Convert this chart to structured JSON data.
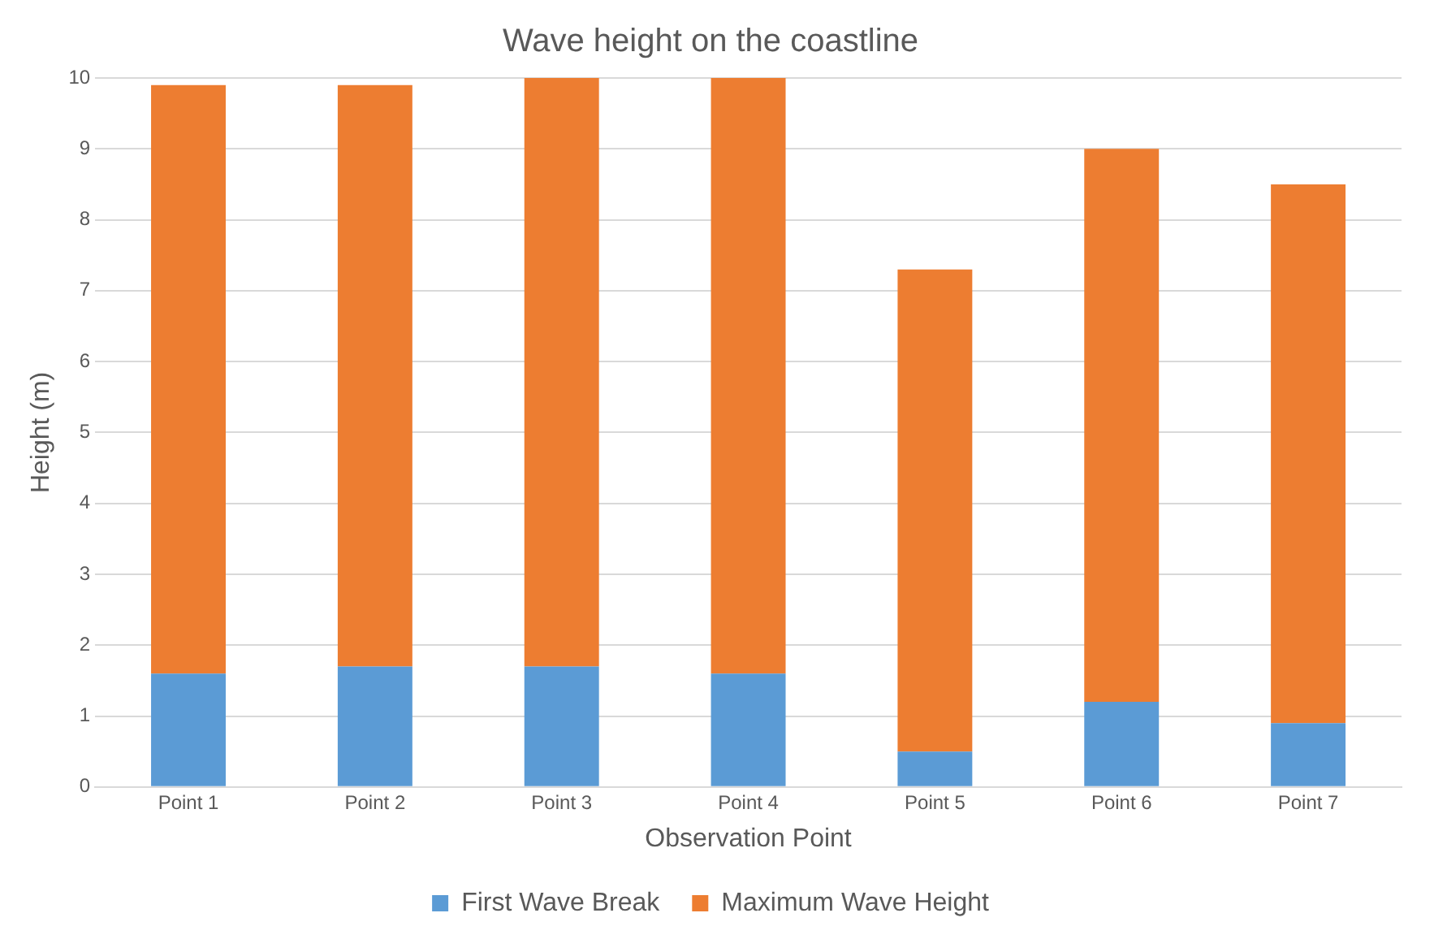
{
  "chart_data": {
    "type": "bar",
    "title": "Wave height on the coastline",
    "xlabel": "Observation Point",
    "ylabel": "Height (m)",
    "categories": [
      "Point 1",
      "Point 2",
      "Point 3",
      "Point 4",
      "Point 5",
      "Point 6",
      "Point 7"
    ],
    "series": [
      {
        "name": "First Wave Break",
        "color": "#5b9bd5",
        "values": [
          1.6,
          1.7,
          1.7,
          1.6,
          0.5,
          1.2,
          0.9
        ]
      },
      {
        "name": "Maximum Wave Height",
        "color": "#ed7d31",
        "values": [
          8.3,
          8.2,
          8.3,
          8.4,
          6.8,
          7.8,
          7.6
        ]
      }
    ],
    "stacked": true,
    "ylim": [
      0,
      10
    ],
    "yticks": [
      0,
      1,
      2,
      3,
      4,
      5,
      6,
      7,
      8,
      9,
      10
    ],
    "grid": "y",
    "legend": "bottom"
  }
}
